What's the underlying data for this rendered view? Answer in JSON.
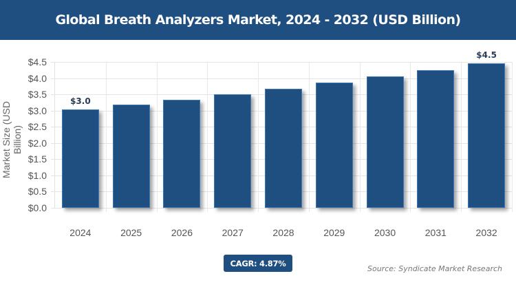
{
  "header": {
    "title": "Global Breath Analyzers Market, 2024 - 2032 (USD Billion)"
  },
  "footer": {
    "cagr": "CAGR: 4.87%",
    "source": "Source: Syndicate Market Research"
  },
  "colors": {
    "bar": "#1f4e80",
    "header_bg": "#1f4e80"
  },
  "chart_data": {
    "type": "bar",
    "title": "Global Breath Analyzers Market, 2024 - 2032 (USD Billion)",
    "xlabel": "",
    "ylabel": "Market Size (USD Billion)",
    "categories": [
      "2024",
      "2025",
      "2026",
      "2027",
      "2028",
      "2029",
      "2030",
      "2031",
      "2032"
    ],
    "values": [
      3.04,
      3.18,
      3.33,
      3.5,
      3.67,
      3.86,
      4.05,
      4.24,
      4.45
    ],
    "data_labels": {
      "0": "$3.0",
      "8": "$4.5"
    },
    "ylim": [
      0,
      4.5
    ],
    "yticks": [
      "$0.0",
      "$0.5",
      "$1.0",
      "$1.5",
      "$2.0",
      "$2.5",
      "$3.0",
      "$3.5",
      "$4.0",
      "$4.5"
    ],
    "grid": true,
    "legend": null,
    "cagr": "4.87%"
  }
}
